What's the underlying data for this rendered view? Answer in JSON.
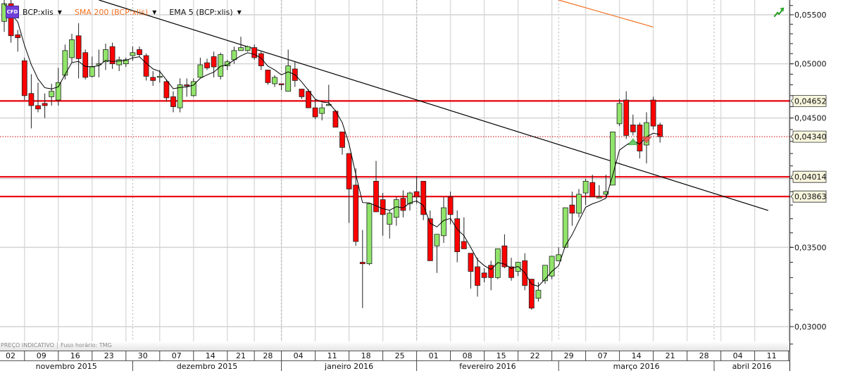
{
  "legend": {
    "badge": "CFD",
    "instrument": "BCP:xlis",
    "sma_label": "SMA 200 (BCP:xlis)",
    "ema_label": "EMA 5 (BCP:xlis)",
    "dropdown_icon": "caret-down-icon"
  },
  "footer": {
    "price_note": "PREÇO INDICATIVO",
    "timezone": "Fuso horário: TMG"
  },
  "toolbar": {
    "trend_icon": "green-trend-arrow-icon"
  },
  "chart_data": {
    "type": "candlestick",
    "symbol": "BCP:xlis",
    "y_scale": "log",
    "ylim": [
      0.02915,
      0.0566
    ],
    "grid": true,
    "colors": {
      "up": "#90e46a",
      "down": "#ff0000",
      "level": "#e8000b",
      "sma": "#f07020",
      "ema": "#000000",
      "trendline": "#000000"
    },
    "y_ticks": [
      {
        "value": 0.055,
        "label": "0,05500"
      },
      {
        "value": 0.05,
        "label": "0,05000"
      },
      {
        "value": 0.045,
        "label": "0,04500"
      },
      {
        "value": 0.04,
        "label": ""
      },
      {
        "value": 0.035,
        "label": "0,03500"
      },
      {
        "value": 0.03,
        "label": "0,03000"
      }
    ],
    "horizontal_levels": [
      {
        "value": 0.04652,
        "label": "0,04652"
      },
      {
        "value": 0.04014,
        "label": "0,04014"
      },
      {
        "value": 0.03863,
        "label": "0,03863"
      }
    ],
    "last_price": {
      "value": 0.0434,
      "label": "0,04340"
    },
    "trendline": [
      [
        "2015-11-24",
        0.0566
      ],
      [
        "2016-04-13",
        0.0376
      ]
    ],
    "sma200_visible": [
      [
        "2016-03-01",
        0.0566
      ],
      [
        "2016-03-21",
        0.0537
      ]
    ],
    "ema_period": 5,
    "markers": [
      {
        "type": "buy",
        "date": "2016-03-16",
        "price": 0.043
      },
      {
        "type": "sell",
        "date": "2016-03-18",
        "price": 0.0431
      }
    ],
    "week_labels": [
      {
        "date": "2015-11-02",
        "label": "02"
      },
      {
        "date": "2015-11-09",
        "label": "09"
      },
      {
        "date": "2015-11-16",
        "label": "16"
      },
      {
        "date": "2015-11-23",
        "label": "23"
      },
      {
        "date": "2015-11-30",
        "label": "30"
      },
      {
        "date": "2015-12-07",
        "label": "07"
      },
      {
        "date": "2015-12-14",
        "label": "14"
      },
      {
        "date": "2015-12-21",
        "label": "21"
      },
      {
        "date": "2015-12-28",
        "label": "28"
      },
      {
        "date": "2016-01-04",
        "label": "04"
      },
      {
        "date": "2016-01-11",
        "label": "11"
      },
      {
        "date": "2016-01-18",
        "label": "18"
      },
      {
        "date": "2016-01-25",
        "label": "25"
      },
      {
        "date": "2016-02-01",
        "label": "01"
      },
      {
        "date": "2016-02-08",
        "label": "08"
      },
      {
        "date": "2016-02-15",
        "label": "15"
      },
      {
        "date": "2016-02-22",
        "label": "22"
      },
      {
        "date": "2016-02-29",
        "label": "29"
      },
      {
        "date": "2016-03-07",
        "label": "07"
      },
      {
        "date": "2016-03-14",
        "label": "14"
      },
      {
        "date": "2016-03-21",
        "label": "21"
      },
      {
        "date": "2016-03-28",
        "label": "28"
      },
      {
        "date": "2016-04-04",
        "label": "04"
      },
      {
        "date": "2016-04-11",
        "label": "11"
      },
      {
        "date": "2016-04-18",
        "label": ""
      }
    ],
    "month_labels": [
      {
        "start": "2015-11-02",
        "label": "novembro 2015"
      },
      {
        "start": "2015-12-01",
        "label": "dezembro 2015"
      },
      {
        "start": "2016-01-04",
        "label": "janeiro 2016"
      },
      {
        "start": "2016-02-01",
        "label": "fevereiro 2016"
      },
      {
        "start": "2016-03-01",
        "label": "março 2016"
      },
      {
        "start": "2016-04-01",
        "label": "abril 2016"
      },
      {
        "start": "2016-05-02",
        "label": ""
      }
    ],
    "candle_fields": [
      "date",
      "open",
      "high",
      "low",
      "close"
    ],
    "candles": [
      [
        "2015-11-04",
        0.0543,
        0.0566,
        0.0532,
        0.0562
      ],
      [
        "2015-11-05",
        0.0562,
        0.0566,
        0.0521,
        0.0528
      ],
      [
        "2015-11-06",
        0.0529,
        0.0534,
        0.0512,
        0.0526
      ],
      [
        "2015-11-09",
        0.0503,
        0.0506,
        0.0466,
        0.047
      ],
      [
        "2015-11-10",
        0.0472,
        0.049,
        0.0441,
        0.0461
      ],
      [
        "2015-11-11",
        0.0461,
        0.0482,
        0.0455,
        0.0458
      ],
      [
        "2015-11-12",
        0.0463,
        0.0472,
        0.045,
        0.0461
      ],
      [
        "2015-11-13",
        0.0469,
        0.0481,
        0.0461,
        0.0474
      ],
      [
        "2015-11-16",
        0.0466,
        0.0496,
        0.0461,
        0.0482
      ],
      [
        "2015-11-17",
        0.0489,
        0.0519,
        0.0485,
        0.0513
      ],
      [
        "2015-11-18",
        0.0506,
        0.053,
        0.0501,
        0.0524
      ],
      [
        "2015-11-19",
        0.0528,
        0.0541,
        0.0486,
        0.0505
      ],
      [
        "2015-11-20",
        0.0511,
        0.0514,
        0.0485,
        0.0487
      ],
      [
        "2015-11-23",
        0.0488,
        0.0507,
        0.0487,
        0.0497
      ],
      [
        "2015-11-24",
        0.0499,
        0.0514,
        0.0487,
        0.05
      ],
      [
        "2015-11-25",
        0.0502,
        0.052,
        0.0494,
        0.0514
      ],
      [
        "2015-11-26",
        0.0517,
        0.0521,
        0.0495,
        0.05
      ],
      [
        "2015-11-27",
        0.0499,
        0.0507,
        0.0493,
        0.0504
      ],
      [
        "2015-11-30",
        0.05,
        0.0506,
        0.0497,
        0.0504
      ],
      [
        "2015-12-01",
        0.0508,
        0.0517,
        0.0503,
        0.0511
      ],
      [
        "2015-12-02",
        0.0514,
        0.0517,
        0.0507,
        0.0509
      ],
      [
        "2015-12-03",
        0.0508,
        0.051,
        0.0484,
        0.0488
      ],
      [
        "2015-12-04",
        0.0487,
        0.0493,
        0.0479,
        0.0484
      ],
      [
        "2015-12-07",
        0.0488,
        0.0494,
        0.0482,
        0.0488
      ],
      [
        "2015-12-08",
        0.0483,
        0.0485,
        0.0465,
        0.0468
      ],
      [
        "2015-12-09",
        0.0469,
        0.0474,
        0.0455,
        0.046
      ],
      [
        "2015-12-10",
        0.0459,
        0.0486,
        0.0455,
        0.048
      ],
      [
        "2015-12-11",
        0.048,
        0.0486,
        0.0469,
        0.0479
      ],
      [
        "2015-12-14",
        0.047,
        0.0486,
        0.0469,
        0.0483
      ],
      [
        "2015-12-15",
        0.0487,
        0.0506,
        0.0487,
        0.0499
      ],
      [
        "2015-12-16",
        0.0501,
        0.0505,
        0.0494,
        0.0496
      ],
      [
        "2015-12-17",
        0.0507,
        0.0512,
        0.0487,
        0.0497
      ],
      [
        "2015-12-18",
        0.0488,
        0.0511,
        0.0485,
        0.0509
      ],
      [
        "2015-12-21",
        0.0498,
        0.0504,
        0.0494,
        0.0502
      ],
      [
        "2015-12-22",
        0.0504,
        0.0517,
        0.05,
        0.0513
      ],
      [
        "2015-12-23",
        0.0513,
        0.0527,
        0.0513,
        0.0516
      ],
      [
        "2015-12-24",
        0.0513,
        0.0518,
        0.0512,
        0.0517
      ],
      [
        "2015-12-28",
        0.0516,
        0.0519,
        0.0504,
        0.0506
      ],
      [
        "2015-12-29",
        0.051,
        0.0512,
        0.0494,
        0.0498
      ],
      [
        "2015-12-30",
        0.0494,
        0.0494,
        0.048,
        0.0482
      ],
      [
        "2015-12-31",
        0.0481,
        0.0489,
        0.0478,
        0.0487
      ],
      [
        "2016-01-04",
        0.0481,
        0.0481,
        0.0475,
        0.048
      ],
      [
        "2016-01-05",
        0.0474,
        0.0514,
        0.0474,
        0.0498
      ],
      [
        "2016-01-06",
        0.0495,
        0.0502,
        0.0478,
        0.0484
      ],
      [
        "2016-01-07",
        0.0476,
        0.0476,
        0.0467,
        0.0469
      ],
      [
        "2016-01-08",
        0.0474,
        0.0476,
        0.0459,
        0.0459
      ],
      [
        "2016-01-11",
        0.0459,
        0.0467,
        0.0449,
        0.0451
      ],
      [
        "2016-01-12",
        0.0454,
        0.0463,
        0.0448,
        0.0459
      ],
      [
        "2016-01-13",
        0.0462,
        0.048,
        0.0461,
        0.0462
      ],
      [
        "2016-01-14",
        0.0456,
        0.0457,
        0.0442,
        0.0442
      ],
      [
        "2016-01-15",
        0.0438,
        0.0438,
        0.0419,
        0.0425
      ],
      [
        "2016-01-18",
        0.042,
        0.042,
        0.0367,
        0.0392
      ],
      [
        "2016-01-19",
        0.0395,
        0.0408,
        0.0351,
        0.0354
      ],
      [
        "2016-01-20",
        0.034,
        0.0362,
        0.0311,
        0.0339
      ],
      [
        "2016-01-21",
        0.0339,
        0.0381,
        0.0338,
        0.0381
      ],
      [
        "2016-01-22",
        0.0398,
        0.0414,
        0.0375,
        0.0375
      ],
      [
        "2016-01-25",
        0.0384,
        0.0389,
        0.0358,
        0.0373
      ],
      [
        "2016-01-26",
        0.0366,
        0.0376,
        0.0356,
        0.0374
      ],
      [
        "2016-01-27",
        0.0371,
        0.0386,
        0.0365,
        0.0384
      ],
      [
        "2016-01-28",
        0.0385,
        0.0391,
        0.0371,
        0.0376
      ],
      [
        "2016-01-29",
        0.0381,
        0.039,
        0.0376,
        0.0389
      ],
      [
        "2016-02-01",
        0.039,
        0.0402,
        0.0381,
        0.0386
      ],
      [
        "2016-02-02",
        0.0398,
        0.0398,
        0.0369,
        0.0373
      ],
      [
        "2016-02-03",
        0.037,
        0.0376,
        0.0342,
        0.0341
      ],
      [
        "2016-02-04",
        0.0351,
        0.0357,
        0.0333,
        0.0359
      ],
      [
        "2016-02-05",
        0.0358,
        0.0386,
        0.0353,
        0.0378
      ],
      [
        "2016-02-08",
        0.0386,
        0.039,
        0.0366,
        0.0373
      ],
      [
        "2016-02-09",
        0.037,
        0.0376,
        0.034,
        0.0347
      ],
      [
        "2016-02-10",
        0.0354,
        0.0371,
        0.0349,
        0.0349
      ],
      [
        "2016-02-11",
        0.0346,
        0.0346,
        0.0323,
        0.0334
      ],
      [
        "2016-02-12",
        0.0337,
        0.0343,
        0.0318,
        0.0325
      ],
      [
        "2016-02-15",
        0.0333,
        0.0336,
        0.0327,
        0.033
      ],
      [
        "2016-02-16",
        0.0338,
        0.0341,
        0.0322,
        0.033
      ],
      [
        "2016-02-17",
        0.033,
        0.0349,
        0.0329,
        0.0349
      ],
      [
        "2016-02-18",
        0.0351,
        0.0359,
        0.0336,
        0.0337
      ],
      [
        "2016-02-19",
        0.0337,
        0.0343,
        0.0328,
        0.033
      ],
      [
        "2016-02-22",
        0.0334,
        0.034,
        0.0331,
        0.034
      ],
      [
        "2016-02-23",
        0.0341,
        0.0346,
        0.0322,
        0.0325
      ],
      [
        "2016-02-24",
        0.0329,
        0.0329,
        0.031,
        0.0311
      ],
      [
        "2016-02-25",
        0.0317,
        0.0327,
        0.0315,
        0.0322
      ],
      [
        "2016-02-26",
        0.0328,
        0.0338,
        0.0326,
        0.0338
      ],
      [
        "2016-02-29",
        0.0331,
        0.0344,
        0.0329,
        0.0344
      ],
      [
        "2016-03-01",
        0.0341,
        0.035,
        0.0341,
        0.0345
      ],
      [
        "2016-03-02",
        0.035,
        0.0378,
        0.035,
        0.0378
      ],
      [
        "2016-03-03",
        0.038,
        0.039,
        0.0365,
        0.0374
      ],
      [
        "2016-03-04",
        0.0374,
        0.0392,
        0.0371,
        0.0388
      ],
      [
        "2016-03-07",
        0.0389,
        0.04,
        0.038,
        0.0398
      ],
      [
        "2016-03-08",
        0.0397,
        0.0403,
        0.0386,
        0.0386
      ],
      [
        "2016-03-09",
        0.0386,
        0.0395,
        0.0385,
        0.0386
      ],
      [
        "2016-03-10",
        0.0388,
        0.0403,
        0.0386,
        0.039
      ],
      [
        "2016-03-11",
        0.0395,
        0.0438,
        0.0395,
        0.0438
      ],
      [
        "2016-03-14",
        0.0445,
        0.0467,
        0.0443,
        0.0463
      ],
      [
        "2016-03-15",
        0.0466,
        0.0474,
        0.0432,
        0.0435
      ],
      [
        "2016-03-16",
        0.0444,
        0.0453,
        0.0435,
        0.0438
      ],
      [
        "2016-03-17",
        0.0444,
        0.0446,
        0.0416,
        0.0422
      ],
      [
        "2016-03-18",
        0.0427,
        0.0455,
        0.0412,
        0.0446
      ],
      [
        "2016-03-21",
        0.0466,
        0.0469,
        0.044,
        0.0443
      ],
      [
        "2016-03-22",
        0.0444,
        0.0446,
        0.0429,
        0.0434
      ]
    ]
  }
}
